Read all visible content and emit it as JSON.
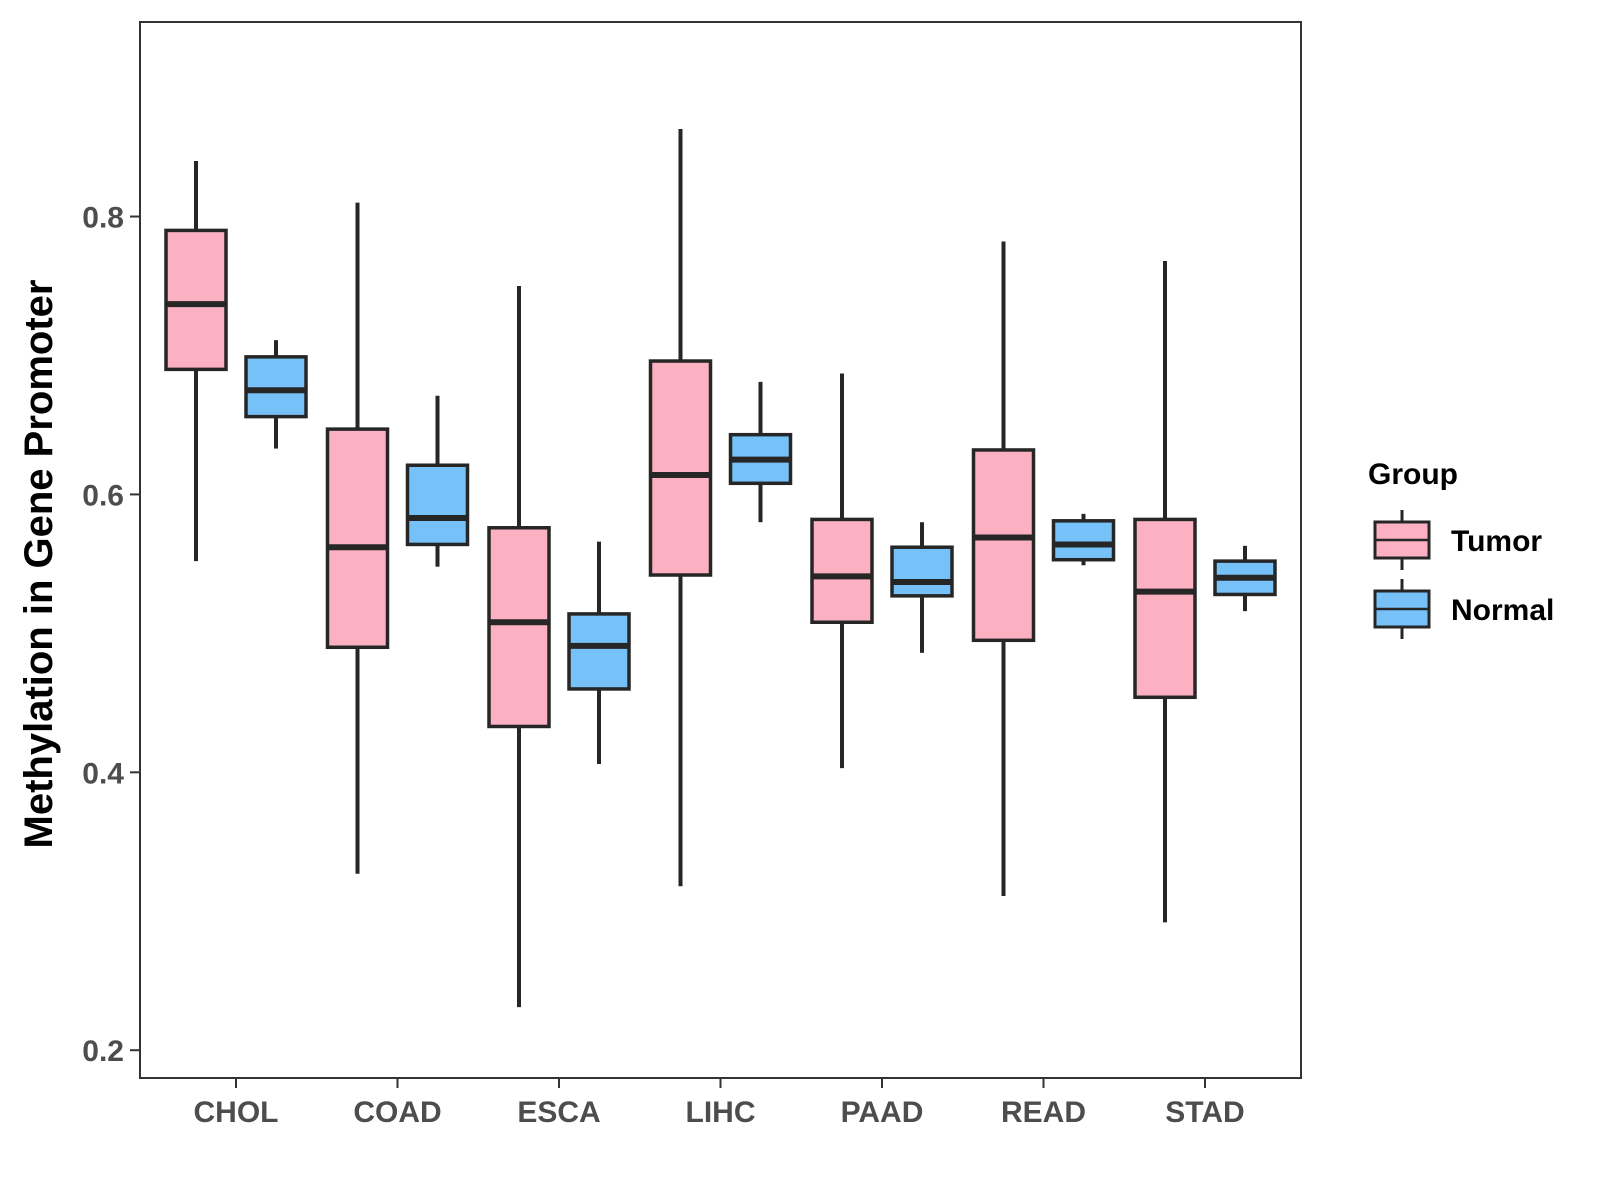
{
  "chart_data": {
    "type": "boxplot",
    "title": "",
    "xlabel": "",
    "ylabel": "Methylation in Gene Promoter",
    "ylim": [
      0.18,
      0.94
    ],
    "yticks": [
      0.2,
      0.4,
      0.6,
      0.8
    ],
    "ytick_labels": [
      "0.2",
      "0.4",
      "0.6",
      "0.8"
    ],
    "grid": false,
    "legend": {
      "title": "Group",
      "position": "right",
      "entries": [
        "Tumor",
        "Normal"
      ]
    },
    "categories": [
      "CHOL",
      "COAD",
      "ESCA",
      "LIHC",
      "PAAD",
      "READ",
      "STAD"
    ],
    "series": [
      {
        "name": "Tumor",
        "color": "#FBB1C2",
        "boxes": [
          {
            "min": 0.552,
            "q1": 0.69,
            "median": 0.737,
            "q3": 0.79,
            "max": 0.84
          },
          {
            "min": 0.327,
            "q1": 0.49,
            "median": 0.562,
            "q3": 0.647,
            "max": 0.81
          },
          {
            "min": 0.231,
            "q1": 0.433,
            "median": 0.508,
            "q3": 0.576,
            "max": 0.75
          },
          {
            "min": 0.318,
            "q1": 0.542,
            "median": 0.614,
            "q3": 0.696,
            "max": 0.863
          },
          {
            "min": 0.403,
            "q1": 0.508,
            "median": 0.541,
            "q3": 0.582,
            "max": 0.687
          },
          {
            "min": 0.311,
            "q1": 0.495,
            "median": 0.569,
            "q3": 0.632,
            "max": 0.782
          },
          {
            "min": 0.292,
            "q1": 0.454,
            "median": 0.53,
            "q3": 0.582,
            "max": 0.768
          }
        ]
      },
      {
        "name": "Normal",
        "color": "#76C1F8",
        "boxes": [
          {
            "min": 0.633,
            "q1": 0.656,
            "median": 0.675,
            "q3": 0.699,
            "max": 0.711
          },
          {
            "min": 0.548,
            "q1": 0.564,
            "median": 0.583,
            "q3": 0.621,
            "max": 0.671
          },
          {
            "min": 0.406,
            "q1": 0.46,
            "median": 0.491,
            "q3": 0.514,
            "max": 0.566
          },
          {
            "min": 0.58,
            "q1": 0.608,
            "median": 0.625,
            "q3": 0.643,
            "max": 0.681
          },
          {
            "min": 0.486,
            "q1": 0.527,
            "median": 0.537,
            "q3": 0.562,
            "max": 0.58
          },
          {
            "min": 0.549,
            "q1": 0.553,
            "median": 0.564,
            "q3": 0.581,
            "max": 0.586
          },
          {
            "min": 0.516,
            "q1": 0.528,
            "median": 0.54,
            "q3": 0.552,
            "max": 0.563
          }
        ]
      }
    ]
  }
}
